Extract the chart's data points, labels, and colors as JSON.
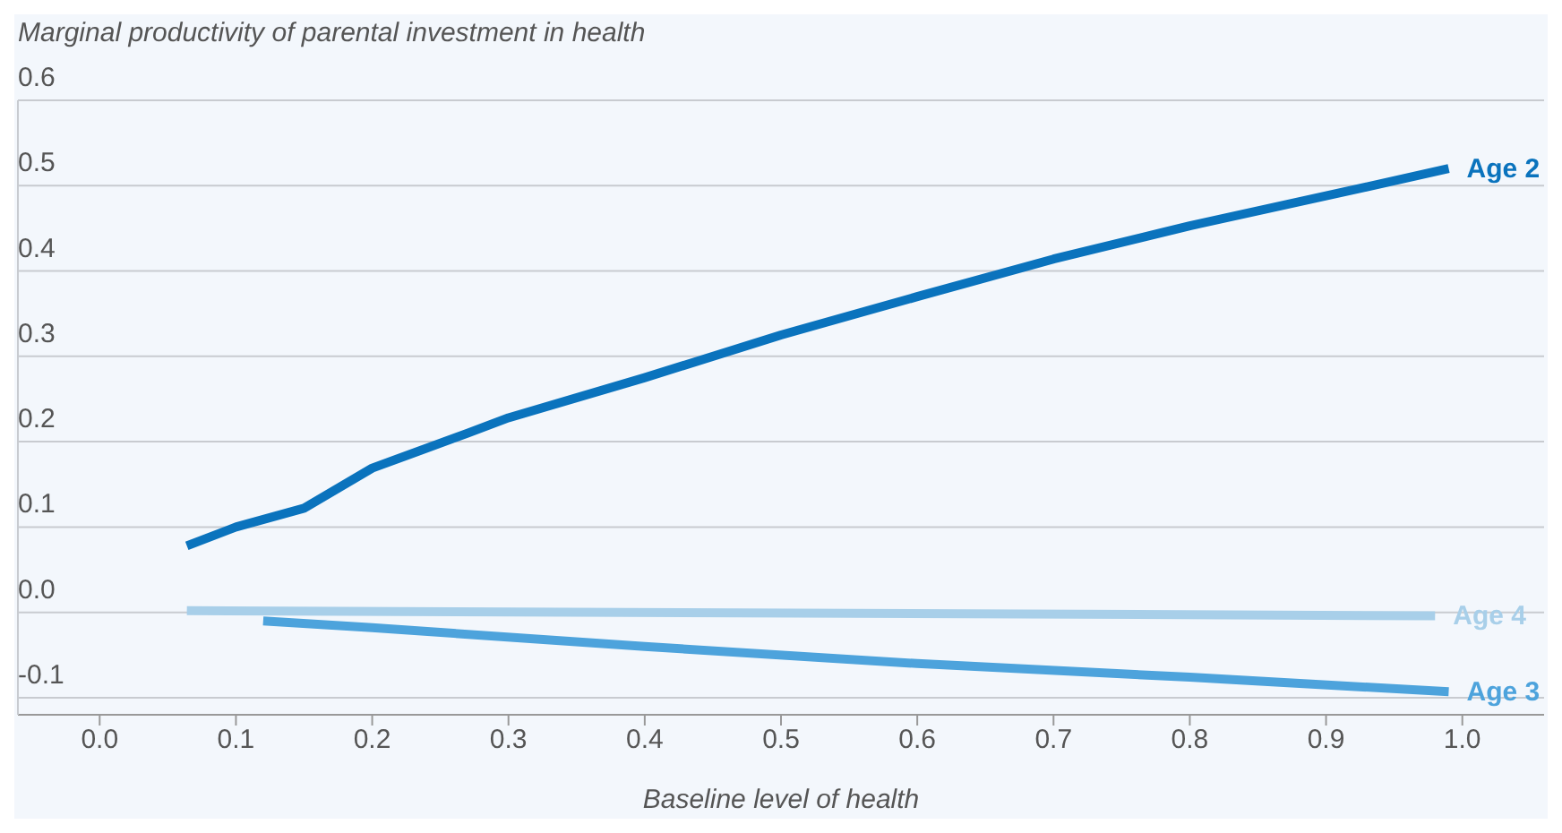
{
  "chart_data": {
    "type": "line",
    "ylabel": "Marginal productivity of parental investment in health",
    "xlabel": "Baseline level of health",
    "xlim": [
      -0.06,
      1.06
    ],
    "xticks": [
      {
        "value": 0,
        "label": "0.0"
      },
      0.1,
      0.2,
      0.3,
      0.4,
      0.5,
      0.6,
      0.7,
      0.8,
      0.9,
      {
        "value": 1,
        "label": "1.0"
      }
    ],
    "ylim": [
      -0.12,
      0.6
    ],
    "yticks": [
      -0.1,
      {
        "value": 0,
        "label": "0.0"
      },
      0.1,
      0.2,
      0.3,
      0.4,
      0.5,
      0.6
    ],
    "grid": "y",
    "legend": false,
    "marker": "none",
    "line_style": "solid",
    "series": [
      {
        "name": "Age 2",
        "color": "#0a73bd",
        "x": [
          0.064,
          0.1,
          0.15,
          0.2,
          0.27,
          0.3,
          0.4,
          0.5,
          0.6,
          0.7,
          0.8,
          0.9,
          0.99
        ],
        "values": [
          0.078,
          0.1,
          0.122,
          0.169,
          0.21,
          0.228,
          0.275,
          0.325,
          0.37,
          0.414,
          0.453,
          0.488,
          0.52
        ]
      },
      {
        "name": "Age 4",
        "color": "#a8cfe9",
        "x": [
          0.064,
          0.98
        ],
        "values": [
          0.002,
          -0.004
        ]
      },
      {
        "name": "Age 3",
        "color": "#4da3dc",
        "x": [
          0.12,
          0.2,
          0.4,
          0.6,
          0.8,
          0.99
        ],
        "values": [
          -0.01,
          -0.018,
          -0.04,
          -0.06,
          -0.076,
          -0.093
        ]
      }
    ]
  }
}
